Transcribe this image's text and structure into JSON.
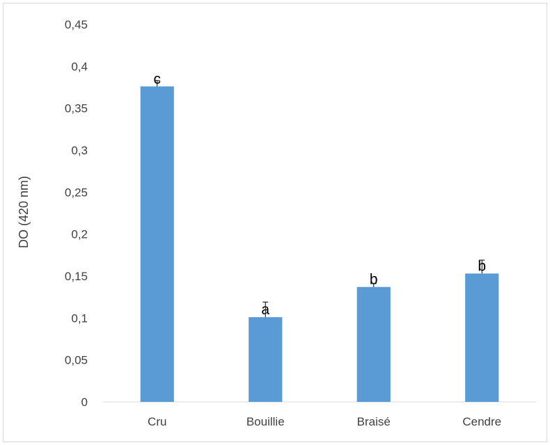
{
  "chart_data": {
    "type": "bar",
    "title": "",
    "xlabel": "",
    "ylabel": "DO (420 nm)",
    "ylim": [
      0,
      0.45
    ],
    "yticks": [
      0,
      0.05,
      0.1,
      0.15,
      0.2,
      0.25,
      0.3,
      0.35,
      0.4,
      0.45
    ],
    "ytick_labels": [
      "0",
      "0,05",
      "0,1",
      "0,15",
      "0,2",
      "0,25",
      "0,3",
      "0,35",
      "0,4",
      "0,45"
    ],
    "categories": [
      "Cru",
      "Bouillie",
      "Braisé",
      "Cendre"
    ],
    "values": [
      0.376,
      0.101,
      0.137,
      0.153
    ],
    "error_bars": [
      0.007,
      0.018,
      0.004,
      0.016
    ],
    "significance_labels": [
      "c",
      "a",
      "b",
      "b"
    ],
    "grid": false,
    "legend": "none",
    "bar_color": "#5b9bd5"
  }
}
